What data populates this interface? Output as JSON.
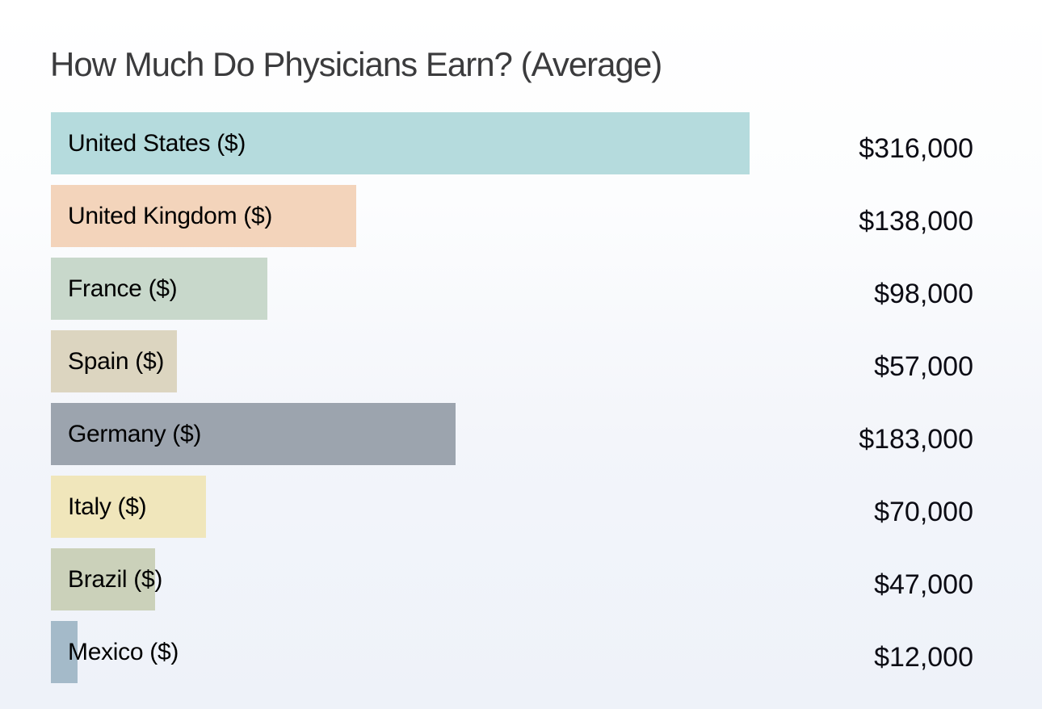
{
  "page": {
    "background_top_color": "#ffffff",
    "background_bottom_color": "#eef2f9"
  },
  "chart_data": {
    "type": "bar",
    "orientation": "horizontal",
    "title": "How Much Do Physicians Earn? (Average)",
    "title_color": "#3b3b3d",
    "categories": [
      "United States ($)",
      "United Kingdom ($)",
      "France ($)",
      "Spain ($)",
      "Germany ($)",
      "Italy ($)",
      "Brazil ($)",
      "Mexico ($)"
    ],
    "values": [
      316000,
      138000,
      98000,
      57000,
      183000,
      70000,
      47000,
      12000
    ],
    "value_labels": [
      "$316,000",
      "$138,000",
      "$98,000",
      "$57,000",
      "$183,000",
      "$70,000",
      "$47,000",
      "$12,000"
    ],
    "bar_colors": [
      "#b5dbdd",
      "#f3d4bb",
      "#c8d8cb",
      "#dcd5c0",
      "#9ca4ae",
      "#f0e6bb",
      "#cbd1ba",
      "#a4bac9"
    ],
    "label_text_color": "#000000",
    "value_text_color": "#0c0c14",
    "axis_max": 316000,
    "xlim": [
      0,
      316000
    ],
    "grid": false,
    "legend": "none",
    "axis_ticks_visible": false
  }
}
